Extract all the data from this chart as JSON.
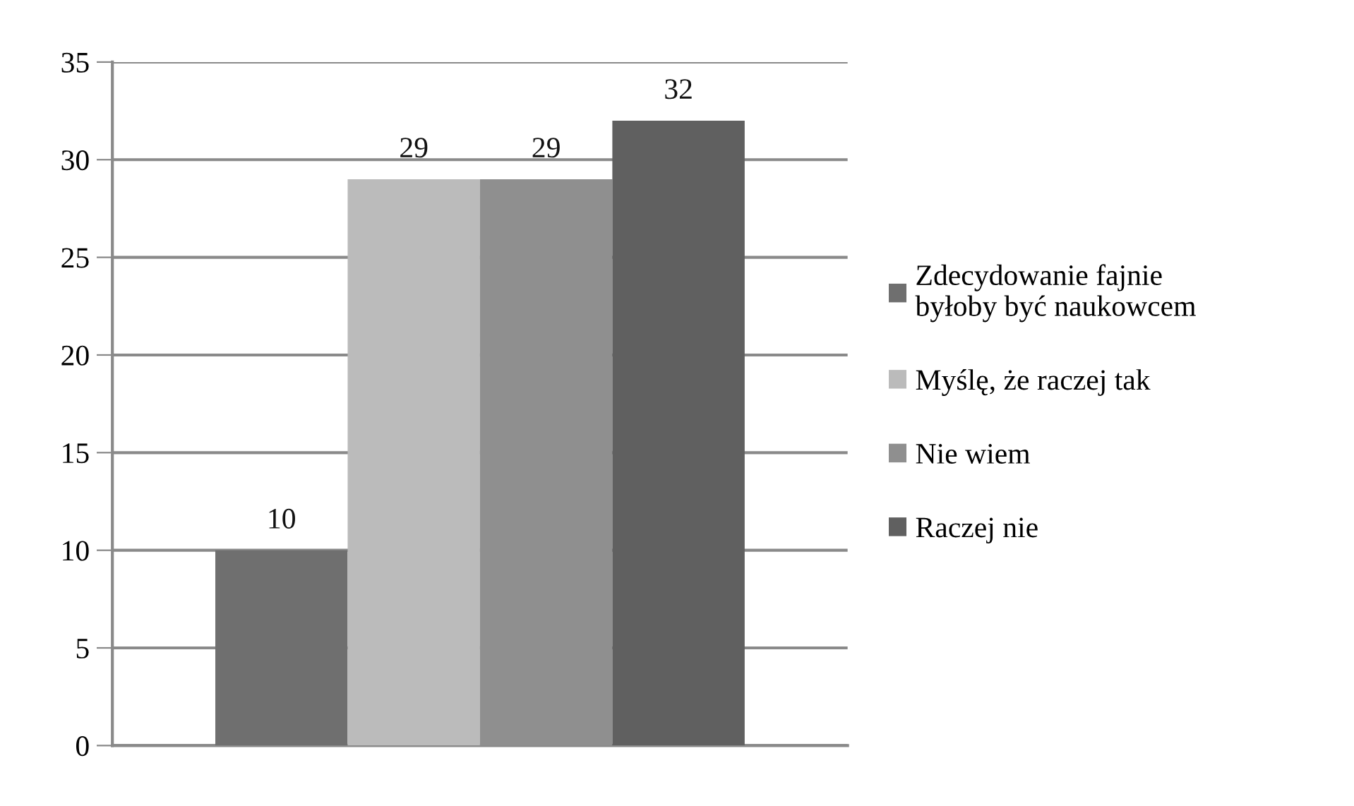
{
  "chart_data": {
    "type": "bar",
    "categories": [
      null
    ],
    "series": [
      {
        "name": "Zdecydowanie fajnie\nbyłoby być naukowcem",
        "color": "#6f6f6f",
        "values": [
          10
        ]
      },
      {
        "name": "Myślę, że raczej tak",
        "color": "#bbbbbb",
        "values": [
          29
        ]
      },
      {
        "name": "Nie wiem",
        "color": "#8f8f8f",
        "values": [
          29
        ]
      },
      {
        "name": "Raczej nie",
        "color": "#606060",
        "values": [
          32
        ]
      }
    ],
    "ylim": [
      0,
      35
    ],
    "yticks": [
      0,
      5,
      10,
      15,
      20,
      25,
      30,
      35
    ],
    "grid": "y",
    "legend": "right",
    "data_labels": true
  }
}
